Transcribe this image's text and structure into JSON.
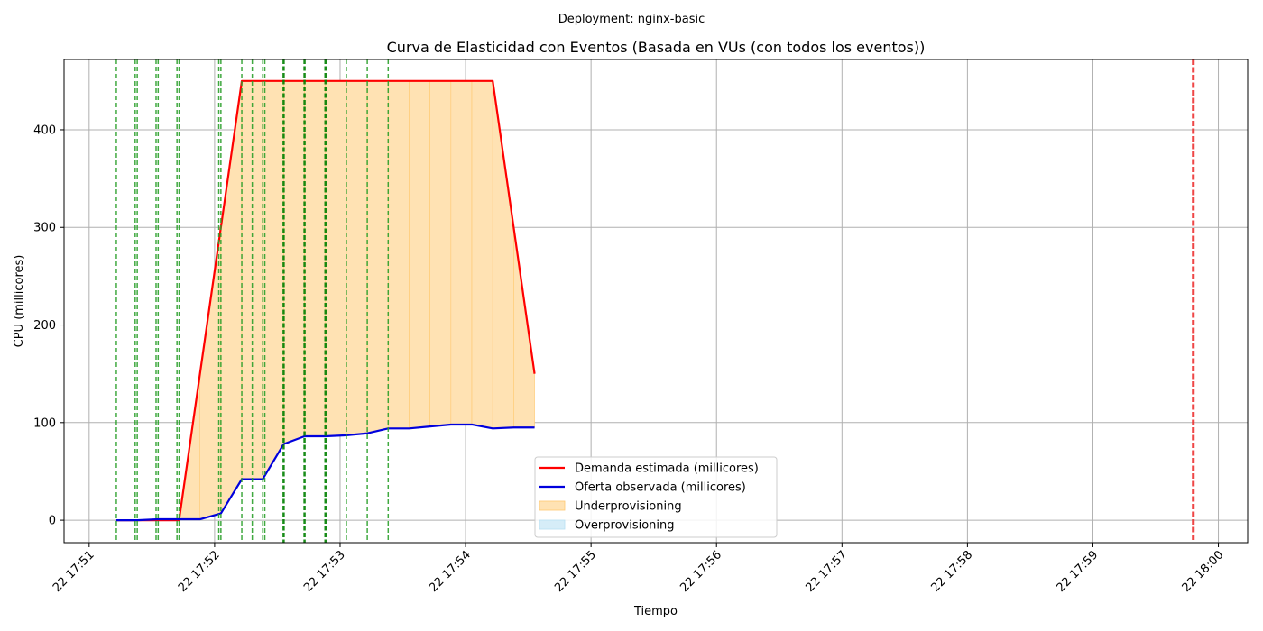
{
  "chart_data": {
    "type": "line",
    "suptitle": "Deployment: nginx-basic",
    "title": "Curva de Elasticidad con Eventos (Basada en VUs (con todos los eventos))",
    "xlabel": "Tiempo",
    "ylabel": "CPU (millicores)",
    "xlim": [
      "22 17:50:48",
      "22 18:00:14"
    ],
    "ylim": [
      -23,
      472
    ],
    "grid": true,
    "legend_position": "lower-center",
    "x_ticks": [
      "22 17:51",
      "22 17:52",
      "22 17:53",
      "22 17:54",
      "22 17:55",
      "22 17:56",
      "22 17:57",
      "22 17:58",
      "22 17:59",
      "22 18:00"
    ],
    "y_ticks": [
      "0",
      "100",
      "200",
      "300",
      "400"
    ],
    "x": [
      "22 17:51:13",
      "22 17:51:23",
      "22 17:51:33",
      "22 17:51:43",
      "22 17:51:53",
      "22 17:52:03",
      "22 17:52:13",
      "22 17:52:23",
      "22 17:52:33",
      "22 17:52:43",
      "22 17:52:53",
      "22 17:53:03",
      "22 17:53:13",
      "22 17:53:23",
      "22 17:53:33",
      "22 17:53:43",
      "22 17:53:53",
      "22 17:54:03",
      "22 17:54:13",
      "22 17:54:23",
      "22 17:54:33"
    ],
    "series": [
      {
        "name": "Demanda estimada (millicores)",
        "color": "#ff0000",
        "values": [
          0,
          0,
          0,
          0,
          150,
          300,
          450,
          450,
          450,
          450,
          450,
          450,
          450,
          450,
          450,
          450,
          450,
          450,
          450,
          300,
          150
        ]
      },
      {
        "name": "Oferta observada (millicores)",
        "color": "#0000dd",
        "values": [
          0,
          0,
          1,
          1,
          1,
          7,
          42,
          42,
          78,
          86,
          86,
          87,
          89,
          94,
          94,
          96,
          98,
          98,
          94,
          95,
          95
        ]
      }
    ],
    "areas": [
      {
        "name": "Underprovisioning",
        "color": "#ffe2b3",
        "between": [
          "Demanda estimada (millicores)",
          "Oferta observada (millicores)"
        ],
        "where": "demand > supply"
      },
      {
        "name": "Overprovisioning",
        "color": "#d6edf8",
        "between": [
          "Oferta observada (millicores)",
          "Demanda estimada (millicores)"
        ],
        "where": "supply > demand"
      }
    ],
    "event_lines": [
      {
        "x": "22 17:51:13",
        "color": "#2ca02c",
        "width": 1.5
      },
      {
        "x": "22 17:51:22",
        "color": "#2ca02c",
        "width": 1.5
      },
      {
        "x": "22 17:51:23",
        "color": "#2ca02c",
        "width": 1.5
      },
      {
        "x": "22 17:51:32",
        "color": "#2ca02c",
        "width": 1.5
      },
      {
        "x": "22 17:51:33",
        "color": "#2ca02c",
        "width": 1.5
      },
      {
        "x": "22 17:51:42",
        "color": "#2ca02c",
        "width": 1.5
      },
      {
        "x": "22 17:51:43",
        "color": "#2ca02c",
        "width": 1.5
      },
      {
        "x": "22 17:52:02",
        "color": "#2ca02c",
        "width": 1.5
      },
      {
        "x": "22 17:52:03",
        "color": "#2ca02c",
        "width": 1.5
      },
      {
        "x": "22 17:52:13",
        "color": "#2ca02c",
        "width": 1.5
      },
      {
        "x": "22 17:52:18",
        "color": "#2ca02c",
        "width": 1.5
      },
      {
        "x": "22 17:52:23",
        "color": "#2ca02c",
        "width": 1.5
      },
      {
        "x": "22 17:52:24",
        "color": "#2ca02c",
        "width": 1.5
      },
      {
        "x": "22 17:52:33",
        "color": "#008000",
        "width": 2.5
      },
      {
        "x": "22 17:52:43",
        "color": "#008000",
        "width": 2.5
      },
      {
        "x": "22 17:52:53",
        "color": "#008000",
        "width": 2.5
      },
      {
        "x": "22 17:53:03",
        "color": "#2ca02c",
        "width": 1.5
      },
      {
        "x": "22 17:53:13",
        "color": "#2ca02c",
        "width": 1.5
      },
      {
        "x": "22 17:53:23",
        "color": "#2ca02c",
        "width": 1.5
      },
      {
        "x": "22 17:59:48",
        "color": "#ee3333",
        "width": 3
      }
    ]
  }
}
